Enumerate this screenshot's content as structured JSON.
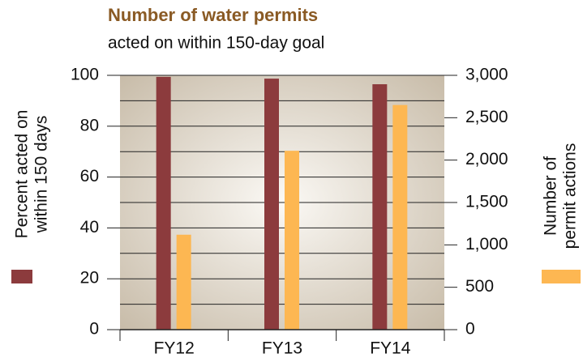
{
  "chart_data": {
    "type": "bar",
    "title": "Number of water permits",
    "subtitle": "acted on within 150-day goal",
    "ylabel": [
      "Percent acted on",
      "within 150 days"
    ],
    "y2label": [
      "Number of",
      "permit actions"
    ],
    "categories": [
      "FY12",
      "FY13",
      "FY14"
    ],
    "series": [
      {
        "color": "#8c3b3d",
        "values": [
          99.4,
          98.7,
          96.5
        ]
      },
      {
        "color": "#fdb752",
        "axis": "y2",
        "values": [
          1120,
          2110,
          2650
        ]
      }
    ],
    "ylim": [
      0,
      100
    ],
    "yticks": [
      0,
      20,
      40,
      60,
      80,
      100
    ],
    "ygrid": [
      0,
      10,
      20,
      30,
      40,
      50,
      60,
      70,
      80,
      90,
      100
    ],
    "y2lim": [
      0,
      3000
    ],
    "y2ticks": [
      0,
      500,
      {
        "value": 1000,
        "label": "1,000"
      },
      {
        "value": 1500,
        "label": "1,500"
      },
      {
        "value": 2000,
        "label": "2,000"
      },
      {
        "value": 2500,
        "label": "2,500"
      },
      {
        "value": 3000,
        "label": "3,000"
      }
    ]
  }
}
